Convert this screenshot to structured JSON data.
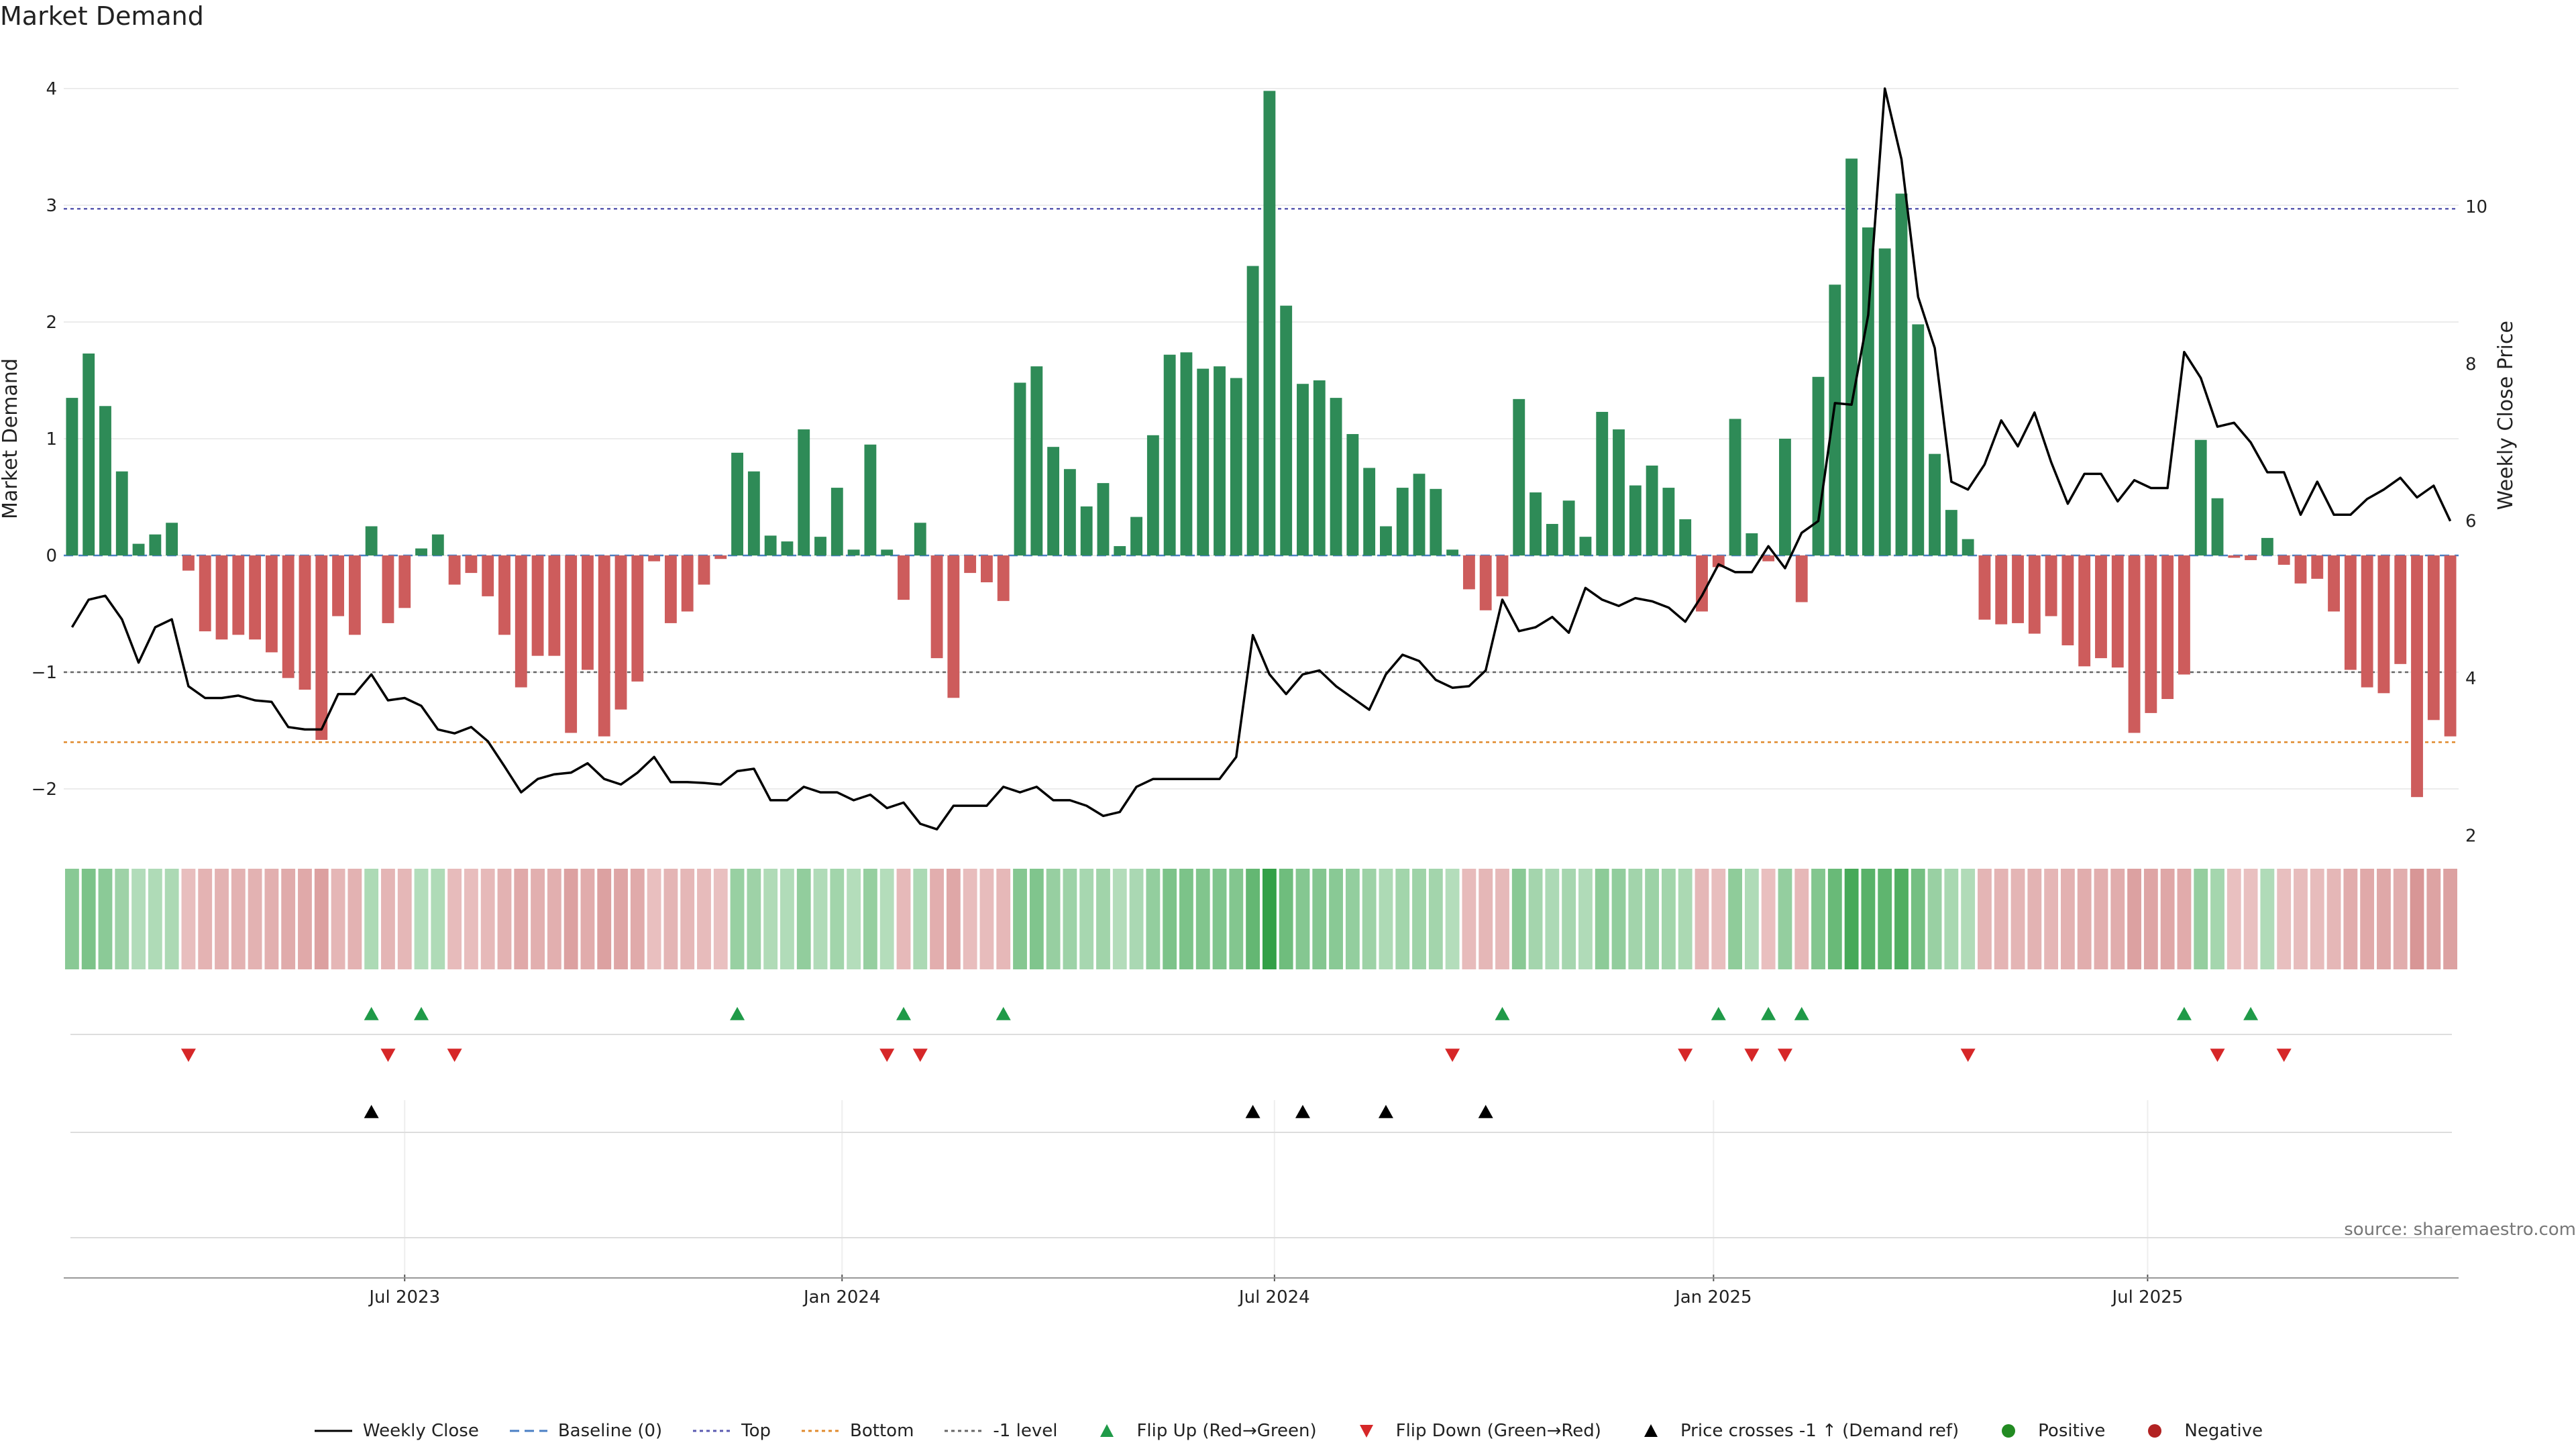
{
  "chart_data": {
    "type": "bar",
    "title": "Market Demand",
    "ylabel": "Market Demand",
    "y2label": "Weekly Close Price",
    "ylim": [
      -2.4,
      4.0
    ],
    "y2lim": [
      2.0,
      11.5
    ],
    "yticks": [
      "4",
      "3",
      "2",
      "1",
      "0",
      "−1",
      "−2"
    ],
    "y2ticks": [
      "10",
      "8",
      "6",
      "4",
      "2"
    ],
    "xticks": [
      "Jul 2023",
      "Jan 2024",
      "Jul 2024",
      "Jan 2025",
      "Jul 2025"
    ],
    "reference_lines": [
      {
        "name": "Top",
        "value": 2.97,
        "color": "#5a5ab0"
      },
      {
        "name": "Bottom",
        "value": -1.6,
        "color": "#e08a2c"
      },
      {
        "name": "-1 level",
        "value": -1.0,
        "color": "#666666"
      },
      {
        "name": "Baseline (0)",
        "value": 0,
        "color": "#4a7fc4"
      }
    ],
    "series": [
      {
        "name": "Market Demand",
        "values": [
          1.35,
          1.73,
          1.28,
          0.72,
          0.1,
          0.18,
          0.28,
          -0.13,
          -0.65,
          -0.72,
          -0.68,
          -0.72,
          -0.83,
          -1.05,
          -1.15,
          -1.58,
          -0.52,
          -0.68,
          0.25,
          -0.58,
          -0.45,
          0.06,
          0.18,
          -0.25,
          -0.15,
          -0.35,
          -0.68,
          -1.13,
          -0.86,
          -0.86,
          -1.52,
          -0.98,
          -1.55,
          -1.32,
          -1.08,
          -0.05,
          -0.58,
          -0.48,
          -0.25,
          -0.03,
          0.88,
          0.72,
          0.17,
          0.12,
          1.08,
          0.16,
          0.58,
          0.05,
          0.95,
          0.05,
          -0.38,
          0.28,
          -0.88,
          -1.22,
          -0.15,
          -0.23,
          -0.39,
          1.48,
          1.62,
          0.93,
          0.74,
          0.42,
          0.62,
          0.08,
          0.33,
          1.03,
          1.72,
          1.74,
          1.6,
          1.62,
          1.52,
          2.48,
          3.98,
          2.14,
          1.47,
          1.5,
          1.35,
          1.04,
          0.75,
          0.25,
          0.58,
          0.7,
          0.57,
          0.05,
          -0.29,
          -0.47,
          -0.35,
          1.34,
          0.54,
          0.27,
          0.47,
          0.16,
          1.23,
          1.08,
          0.6,
          0.77,
          0.58,
          0.31,
          -0.48,
          -0.1,
          1.17,
          0.19,
          -0.05,
          1.0,
          -0.4,
          1.53,
          2.32,
          3.4,
          2.81,
          2.63,
          3.1,
          1.98,
          0.87,
          0.39,
          0.14,
          -0.55,
          -0.59,
          -0.58,
          -0.67,
          -0.52,
          -0.77,
          -0.95,
          -0.88,
          -0.96,
          -1.52,
          -1.35,
          -1.23,
          -1.02,
          0.99,
          0.49,
          -0.02,
          -0.04,
          0.15,
          -0.08,
          -0.24,
          -0.2,
          -0.48,
          -0.98,
          -1.13,
          -1.18,
          -0.93,
          -2.07,
          -1.41,
          -1.55
        ]
      },
      {
        "name": "Weekly Close",
        "axis": "right",
        "values": [
          4.65,
          5.0,
          5.05,
          4.75,
          4.2,
          4.65,
          4.75,
          3.9,
          3.75,
          3.75,
          3.78,
          3.72,
          3.7,
          3.38,
          3.35,
          3.35,
          3.8,
          3.8,
          4.05,
          3.72,
          3.75,
          3.65,
          3.35,
          3.3,
          3.38,
          3.2,
          2.88,
          2.55,
          2.72,
          2.78,
          2.8,
          2.92,
          2.72,
          2.65,
          2.8,
          3.0,
          2.68,
          2.68,
          2.67,
          2.65,
          2.82,
          2.85,
          2.45,
          2.45,
          2.62,
          2.55,
          2.55,
          2.45,
          2.52,
          2.35,
          2.42,
          2.15,
          2.08,
          2.38,
          2.38,
          2.38,
          2.62,
          2.55,
          2.62,
          2.45,
          2.45,
          2.38,
          2.25,
          2.3,
          2.62,
          2.72,
          2.72,
          2.72,
          2.72,
          2.72,
          3.0,
          4.55,
          4.05,
          3.8,
          4.05,
          4.1,
          3.9,
          3.75,
          3.6,
          4.05,
          4.3,
          4.22,
          3.98,
          3.88,
          3.9,
          4.1,
          5.0,
          4.6,
          4.65,
          4.78,
          4.58,
          5.15,
          5.0,
          4.92,
          5.02,
          4.98,
          4.9,
          4.72,
          5.05,
          5.45,
          5.35,
          5.35,
          5.68,
          5.4,
          5.85,
          6.0,
          7.5,
          7.48,
          8.62,
          11.5,
          10.6,
          8.85,
          8.2,
          6.5,
          6.4,
          6.72,
          7.28,
          6.95,
          7.38,
          6.75,
          6.22,
          6.6,
          6.6,
          6.25,
          6.52,
          6.42,
          6.42,
          8.15,
          7.82,
          7.2,
          7.25,
          7.0,
          6.62,
          6.62,
          6.08,
          6.5,
          6.08,
          6.08,
          6.28,
          6.4,
          6.55,
          6.3,
          6.45,
          6.0
        ]
      }
    ],
    "flip_up_bars": [
      18,
      21,
      40,
      50,
      56,
      86,
      99,
      102,
      104,
      127,
      131
    ],
    "flip_down_bars": [
      7,
      19,
      23,
      49,
      51,
      83,
      97,
      101,
      103,
      114,
      129,
      133
    ],
    "price_cross_bars": [
      18,
      71,
      74,
      79,
      85
    ],
    "legend": [
      "Weekly Close",
      "Baseline (0)",
      "Top",
      "Bottom",
      "-1 level",
      "Flip Up (Red→Green)",
      "Flip Down (Green→Red)",
      "Price crosses -1 ↑ (Demand ref)",
      "Positive",
      "Negative"
    ],
    "colors": {
      "positive": "#2e8b57",
      "negative": "#cd5c5c",
      "line": "#000000",
      "flip_up": "#1f9a48",
      "flip_down": "#d62728",
      "price_cross": "#000000",
      "positive_dot": "#228b22",
      "negative_dot": "#b22222"
    }
  },
  "source": "source: sharemaestro.com"
}
